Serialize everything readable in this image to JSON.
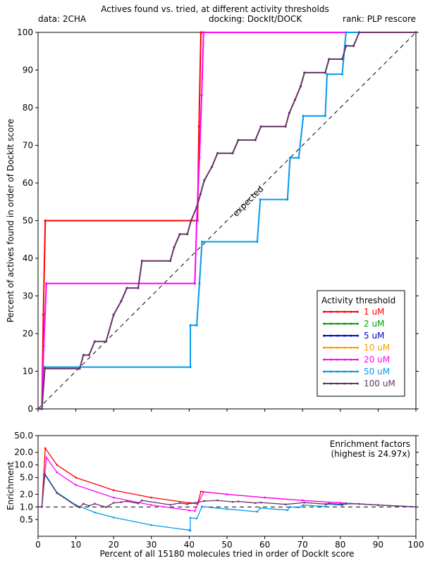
{
  "header": {
    "title": "Actives found vs. tried, at different activity thresholds",
    "data_label": "data: 2CHA",
    "docking_label": "docking: DockIt/DOCK",
    "rank_label": "rank: PLP rescore"
  },
  "chart_data": [
    {
      "type": "line",
      "name": "actives-found",
      "xlabel": "",
      "ylabel": "Percent of actives found in order of DockIt score",
      "xlim": [
        0,
        100
      ],
      "ylim": [
        0,
        100
      ],
      "xticks": [
        0,
        10,
        20,
        30,
        40,
        50,
        60,
        70,
        80,
        90,
        100
      ],
      "yticks": [
        0,
        10,
        20,
        30,
        40,
        50,
        60,
        70,
        80,
        90,
        100
      ],
      "grid": false,
      "diagonal_label": "expected",
      "legend": {
        "title": "Activity threshold",
        "position": "bottom-right",
        "entries": [
          {
            "label": "1 uM",
            "color": "#ff0000"
          },
          {
            "label": "2 uM",
            "color": "#00a000"
          },
          {
            "label": "5 uM",
            "color": "#0000c8"
          },
          {
            "label": "10 uM",
            "color": "#ff9900"
          },
          {
            "label": "20 uM",
            "color": "#ff00ff"
          },
          {
            "label": "50 uM",
            "color": "#0099ee"
          },
          {
            "label": "100 uM",
            "color": "#663366"
          }
        ]
      },
      "series": [
        {
          "name": "1 uM",
          "color": "#ff0000",
          "points": [
            [
              0,
              0
            ],
            [
              1,
              0
            ],
            [
              1.4,
              25
            ],
            [
              1.9,
              50
            ],
            [
              42.2,
              50
            ],
            [
              42.6,
              75
            ],
            [
              43.1,
              100
            ],
            [
              100,
              100
            ]
          ]
        },
        {
          "name": "20 uM",
          "color": "#ff00ff",
          "points": [
            [
              0,
              0
            ],
            [
              1,
              0
            ],
            [
              1.5,
              16.7
            ],
            [
              2.2,
              33.3
            ],
            [
              41.5,
              33.3
            ],
            [
              42,
              50
            ],
            [
              42.7,
              66.7
            ],
            [
              43.3,
              83.3
            ],
            [
              43.8,
              100
            ],
            [
              100,
              100
            ]
          ]
        },
        {
          "name": "50 uM",
          "color": "#0099ee",
          "points": [
            [
              0,
              0
            ],
            [
              1,
              0
            ],
            [
              1.8,
              11.1
            ],
            [
              40.3,
              11.1
            ],
            [
              40.3,
              22.2
            ],
            [
              42,
              22.2
            ],
            [
              42.7,
              33.3
            ],
            [
              43.4,
              44.4
            ],
            [
              58,
              44.4
            ],
            [
              58.8,
              55.6
            ],
            [
              66,
              55.6
            ],
            [
              66.7,
              66.7
            ],
            [
              69,
              66.7
            ],
            [
              70.2,
              77.8
            ],
            [
              76,
              77.8
            ],
            [
              76.5,
              88.9
            ],
            [
              80.5,
              88.9
            ],
            [
              81.5,
              100
            ],
            [
              100,
              100
            ]
          ]
        },
        {
          "name": "100 uM",
          "color": "#663366",
          "points": [
            [
              0,
              0
            ],
            [
              1,
              0
            ],
            [
              1.8,
              10.7
            ],
            [
              11,
              10.7
            ],
            [
              12,
              14.3
            ],
            [
              13.5,
              14.3
            ],
            [
              15,
              17.9
            ],
            [
              18,
              17.9
            ],
            [
              20,
              25
            ],
            [
              22,
              28.6
            ],
            [
              23.5,
              32.1
            ],
            [
              26.5,
              32.1
            ],
            [
              27.5,
              39.3
            ],
            [
              35,
              39.3
            ],
            [
              36,
              42.9
            ],
            [
              37.5,
              46.4
            ],
            [
              39.5,
              46.4
            ],
            [
              40.5,
              50
            ],
            [
              42,
              53.6
            ],
            [
              43,
              57.1
            ],
            [
              44,
              60.7
            ],
            [
              46,
              64.3
            ],
            [
              47.5,
              67.9
            ],
            [
              51.5,
              67.9
            ],
            [
              53,
              71.4
            ],
            [
              57.5,
              71.4
            ],
            [
              59,
              75
            ],
            [
              65.5,
              75
            ],
            [
              66.5,
              78.6
            ],
            [
              68,
              82.1
            ],
            [
              69.5,
              85.7
            ],
            [
              70.5,
              89.3
            ],
            [
              76,
              89.3
            ],
            [
              77,
              92.9
            ],
            [
              80.5,
              92.9
            ],
            [
              81.5,
              96.4
            ],
            [
              83.5,
              96.4
            ],
            [
              85,
              100
            ],
            [
              100,
              100
            ]
          ]
        }
      ]
    },
    {
      "type": "line",
      "name": "enrichment",
      "xlabel": "Percent of all 15180 molecules tried in order of DockIt score",
      "ylabel": "Enrichment",
      "xlim": [
        0,
        100
      ],
      "ylim": [
        0.2,
        50
      ],
      "yscale": "log",
      "xticks": [
        0,
        10,
        20,
        30,
        40,
        50,
        60,
        70,
        80,
        90,
        100
      ],
      "yticks": [
        {
          "value": 50,
          "label": "50.0"
        },
        {
          "value": 20,
          "label": "20.0"
        },
        {
          "value": 10,
          "label": "10.0"
        },
        {
          "value": 5,
          "label": "5.0"
        },
        {
          "value": 2,
          "label": "2.0"
        },
        {
          "value": 1,
          "label": "1.0"
        },
        {
          "value": 0.5,
          "label": "0.5"
        }
      ],
      "reference_line": 1,
      "annotation": [
        "Enrichment factors",
        "(highest is 24.97x)"
      ],
      "series": [
        {
          "name": "1 uM",
          "color": "#ff0000",
          "points": [
            [
              0,
              1
            ],
            [
              1,
              1
            ],
            [
              1.9,
              25
            ],
            [
              5,
              10
            ],
            [
              10,
              5
            ],
            [
              20,
              2.5
            ],
            [
              30,
              1.67
            ],
            [
              40,
              1.25
            ],
            [
              42.2,
              1.18
            ],
            [
              43.1,
              2.32
            ],
            [
              50,
              2
            ],
            [
              60,
              1.67
            ],
            [
              70,
              1.43
            ],
            [
              80,
              1.25
            ],
            [
              90,
              1.11
            ],
            [
              100,
              1
            ]
          ]
        },
        {
          "name": "20 uM",
          "color": "#ff00ff",
          "points": [
            [
              0,
              1
            ],
            [
              1,
              1
            ],
            [
              2.2,
              15.1
            ],
            [
              5,
              6.67
            ],
            [
              10,
              3.33
            ],
            [
              20,
              1.67
            ],
            [
              30,
              1.11
            ],
            [
              40,
              0.83
            ],
            [
              41.5,
              0.8
            ],
            [
              43.8,
              2.28
            ],
            [
              50,
              2
            ],
            [
              60,
              1.67
            ],
            [
              70,
              1.43
            ],
            [
              80,
              1.25
            ],
            [
              90,
              1.11
            ],
            [
              100,
              1
            ]
          ]
        },
        {
          "name": "50 uM",
          "color": "#0099ee",
          "points": [
            [
              0,
              1
            ],
            [
              1,
              1
            ],
            [
              1.8,
              6.2
            ],
            [
              5,
              2.22
            ],
            [
              10,
              1.11
            ],
            [
              15,
              0.74
            ],
            [
              20,
              0.56
            ],
            [
              30,
              0.37
            ],
            [
              40,
              0.28
            ],
            [
              40.3,
              0.27
            ],
            [
              40.3,
              0.55
            ],
            [
              42,
              0.53
            ],
            [
              43.4,
              1.02
            ],
            [
              50,
              0.89
            ],
            [
              58,
              0.77
            ],
            [
              58.8,
              0.94
            ],
            [
              66,
              0.84
            ],
            [
              66.7,
              1
            ],
            [
              69,
              0.97
            ],
            [
              70.2,
              1.11
            ],
            [
              76,
              1.02
            ],
            [
              76.5,
              1.16
            ],
            [
              80.5,
              1.1
            ],
            [
              81.5,
              1.23
            ],
            [
              90,
              1.11
            ],
            [
              100,
              1
            ]
          ]
        },
        {
          "name": "100 uM",
          "color": "#663366",
          "points": [
            [
              0,
              1
            ],
            [
              1,
              1
            ],
            [
              1.8,
              5.9
            ],
            [
              5,
              2.14
            ],
            [
              10,
              1.07
            ],
            [
              11,
              0.97
            ],
            [
              12,
              1.19
            ],
            [
              13.5,
              1.06
            ],
            [
              15,
              1.19
            ],
            [
              18,
              0.99
            ],
            [
              20,
              1.25
            ],
            [
              22,
              1.3
            ],
            [
              23.5,
              1.37
            ],
            [
              26.5,
              1.21
            ],
            [
              27.5,
              1.43
            ],
            [
              35,
              1.12
            ],
            [
              37.5,
              1.24
            ],
            [
              39.5,
              1.17
            ],
            [
              40.5,
              1.23
            ],
            [
              44,
              1.38
            ],
            [
              47.5,
              1.43
            ],
            [
              51.5,
              1.32
            ],
            [
              53,
              1.35
            ],
            [
              57.5,
              1.24
            ],
            [
              59,
              1.27
            ],
            [
              65.5,
              1.15
            ],
            [
              70.5,
              1.27
            ],
            [
              76,
              1.17
            ],
            [
              77,
              1.21
            ],
            [
              80.5,
              1.15
            ],
            [
              81.5,
              1.18
            ],
            [
              85,
              1.18
            ],
            [
              90,
              1.11
            ],
            [
              100,
              1
            ]
          ]
        }
      ]
    }
  ]
}
